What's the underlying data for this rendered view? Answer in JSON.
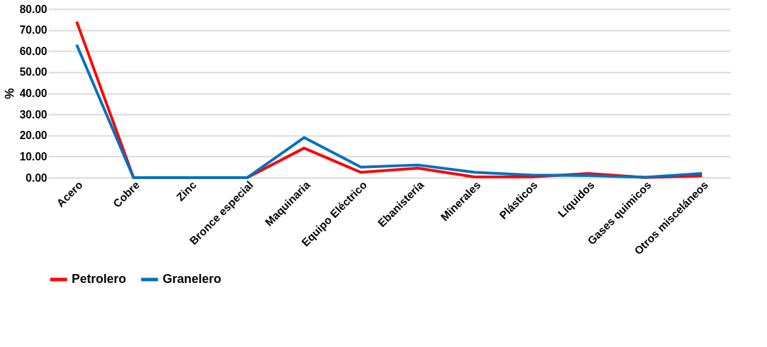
{
  "chart_data": {
    "type": "line",
    "ylabel": "%",
    "categories": [
      "Acero",
      "Cobre",
      "Zinc",
      "Bronce especial",
      "Maquinaria",
      "Equipo Eléctrico",
      "Ebanistería",
      "Minerales",
      "Plásticos",
      "Líquidos",
      "Gases quimicos",
      "Otros misceláneos"
    ],
    "series": [
      {
        "name": "Petrolero",
        "color": "#ff0000",
        "values": [
          74,
          0,
          0,
          0,
          14,
          2.5,
          4.5,
          0.3,
          0.3,
          2,
          0.1,
          0.8
        ]
      },
      {
        "name": "Granelero",
        "color": "#0070c0",
        "values": [
          63,
          0,
          0,
          0,
          19,
          5,
          6,
          2.5,
          1.2,
          1,
          0.2,
          2
        ]
      }
    ],
    "ylim": [
      0,
      80
    ],
    "yticks": [
      {
        "value": 0,
        "label": "0.00"
      },
      {
        "value": 10,
        "label": "10.00"
      },
      {
        "value": 20,
        "label": "20.00"
      },
      {
        "value": 30,
        "label": "30.00"
      },
      {
        "value": 40,
        "label": "40.00"
      },
      {
        "value": 50,
        "label": "50.00"
      },
      {
        "value": 60,
        "label": "60.00"
      },
      {
        "value": 70,
        "label": "70.00"
      },
      {
        "value": 80,
        "label": "80.00"
      }
    ],
    "grid": "y",
    "legend": "bottom",
    "marker": "none",
    "line_style": "solid"
  }
}
